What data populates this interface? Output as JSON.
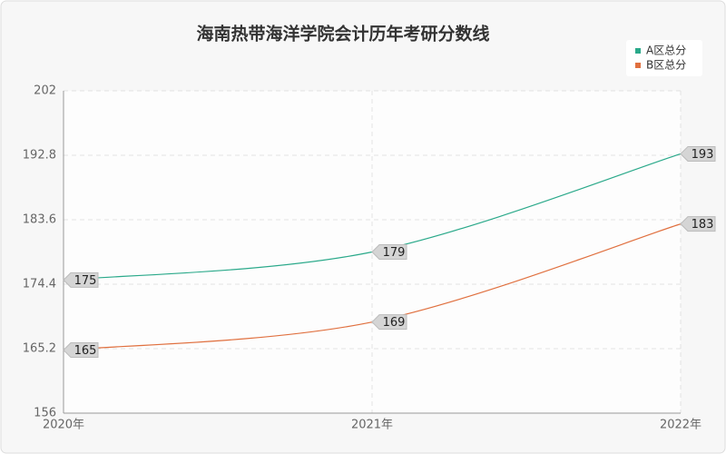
{
  "chart_data": {
    "type": "line",
    "title": "海南热带海洋学院会计历年考研分数线",
    "categories": [
      "2020年",
      "2021年",
      "2022年"
    ],
    "series": [
      {
        "name": "A区总分",
        "color": "#2aa98a",
        "values": [
          175,
          179,
          193
        ]
      },
      {
        "name": "B区总分",
        "color": "#e0703f",
        "values": [
          165,
          169,
          183
        ]
      }
    ],
    "ylim": [
      156,
      202
    ],
    "yticks": [
      156,
      165.2,
      174.4,
      183.6,
      192.8,
      202
    ],
    "grid": true,
    "legend": "top-right"
  }
}
